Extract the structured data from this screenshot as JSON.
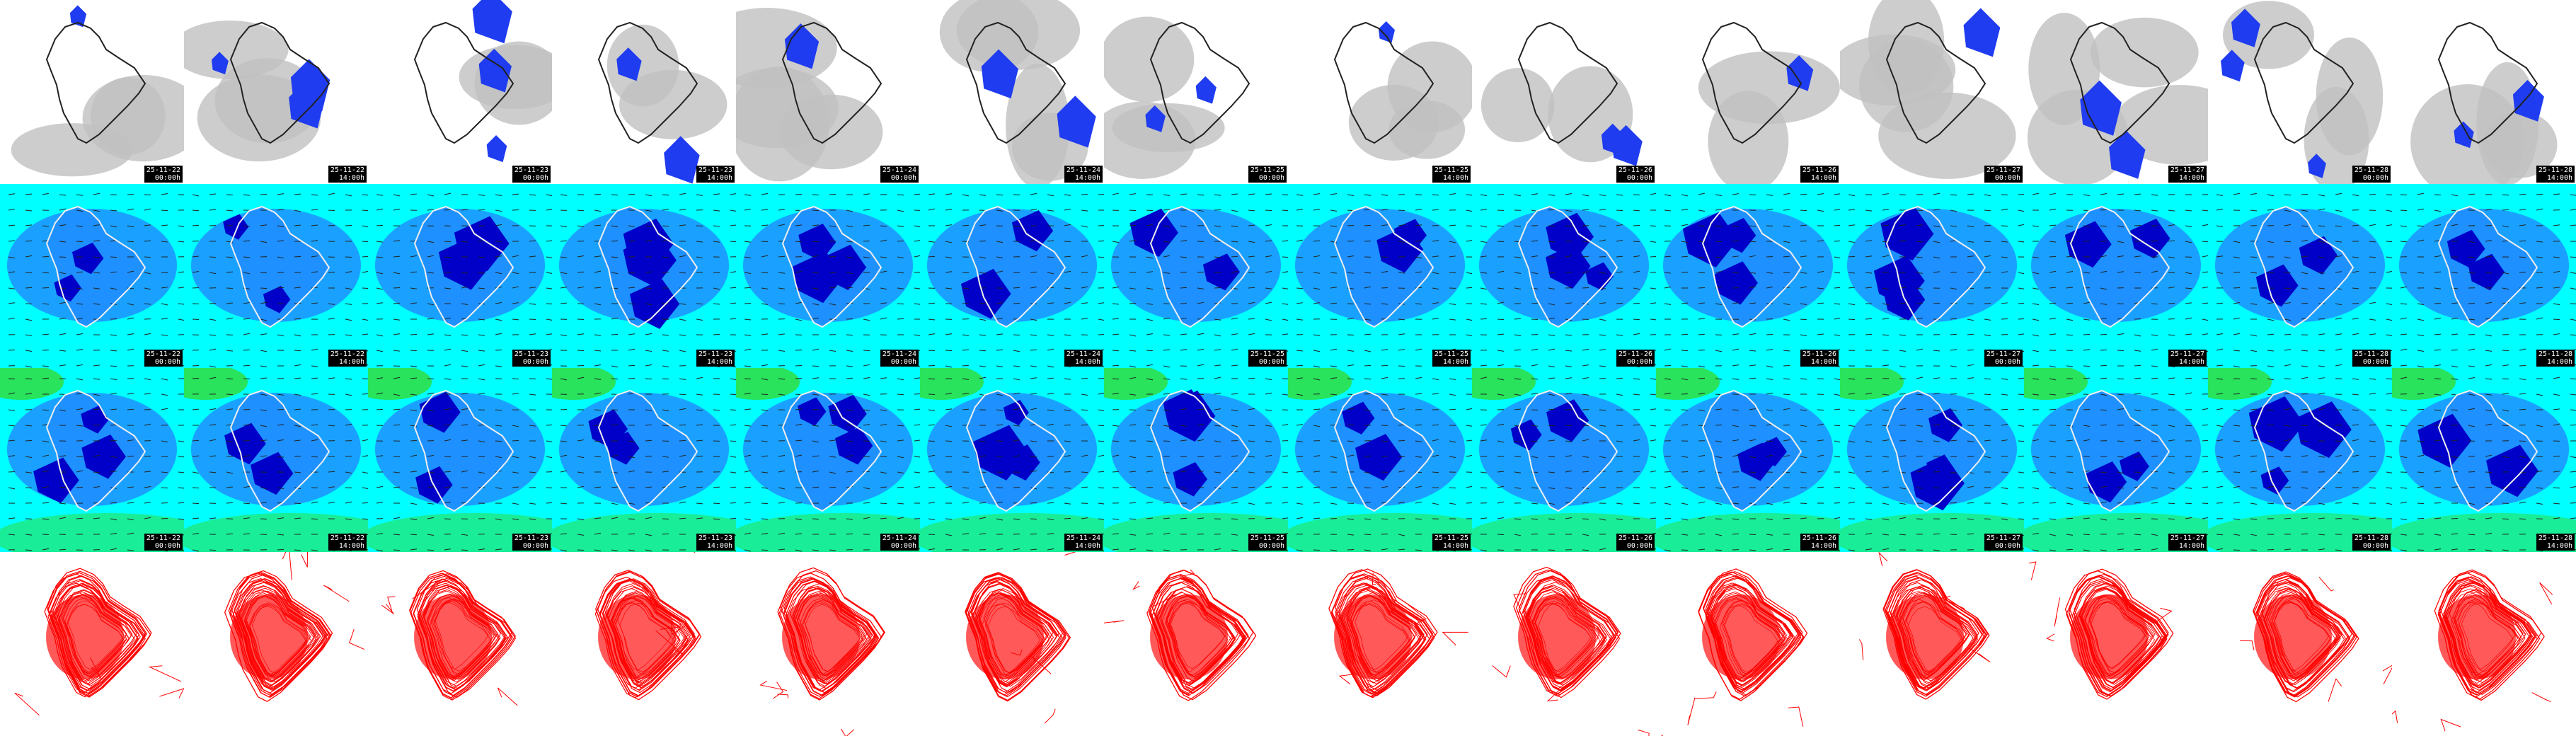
{
  "rows": [
    {
      "id": "cloud",
      "label": "",
      "colors": {
        "background": "#ffffff",
        "cloud": "#c0c0c0",
        "precip": "#1f3cf0",
        "coast": "#222222"
      },
      "show_stamp": true
    },
    {
      "id": "wind-a",
      "label": "",
      "colors": {
        "background": "#00ffff",
        "mid": "#1e90ff",
        "deep": "#0000c8",
        "coast": "#eeeeee"
      },
      "show_stamp": true
    },
    {
      "id": "wind-b",
      "label": "",
      "colors": {
        "background": "#00ffff",
        "mid": "#1e90ff",
        "deep": "#0000c8",
        "green": "#32dc32",
        "coast": "#eeeeee"
      },
      "show_stamp": true
    },
    {
      "id": "contours",
      "label": "",
      "colors": {
        "background": "#ffffff",
        "contour": "#ff0000"
      },
      "show_stamp": false
    }
  ],
  "timestamps": [
    {
      "date": "25-11-22",
      "time": "00:00h"
    },
    {
      "date": "25-11-22",
      "time": "14:00h"
    },
    {
      "date": "25-11-23",
      "time": "00:00h"
    },
    {
      "date": "25-11-23",
      "time": "14:00h"
    },
    {
      "date": "25-11-24",
      "time": "00:00h"
    },
    {
      "date": "25-11-24",
      "time": "14:00h"
    },
    {
      "date": "25-11-25",
      "time": "00:00h"
    },
    {
      "date": "25-11-25",
      "time": "14:00h"
    },
    {
      "date": "25-11-26",
      "time": "00:00h"
    },
    {
      "date": "25-11-26",
      "time": "14:00h"
    },
    {
      "date": "25-11-27",
      "time": "00:00h"
    },
    {
      "date": "25-11-27",
      "time": "14:00h"
    },
    {
      "date": "25-11-28",
      "time": "00:00h"
    },
    {
      "date": "25-11-28",
      "time": "14:00h"
    }
  ],
  "icons": {
    "island": "island-outline-icon",
    "wind": "wind-arrow-icon"
  }
}
